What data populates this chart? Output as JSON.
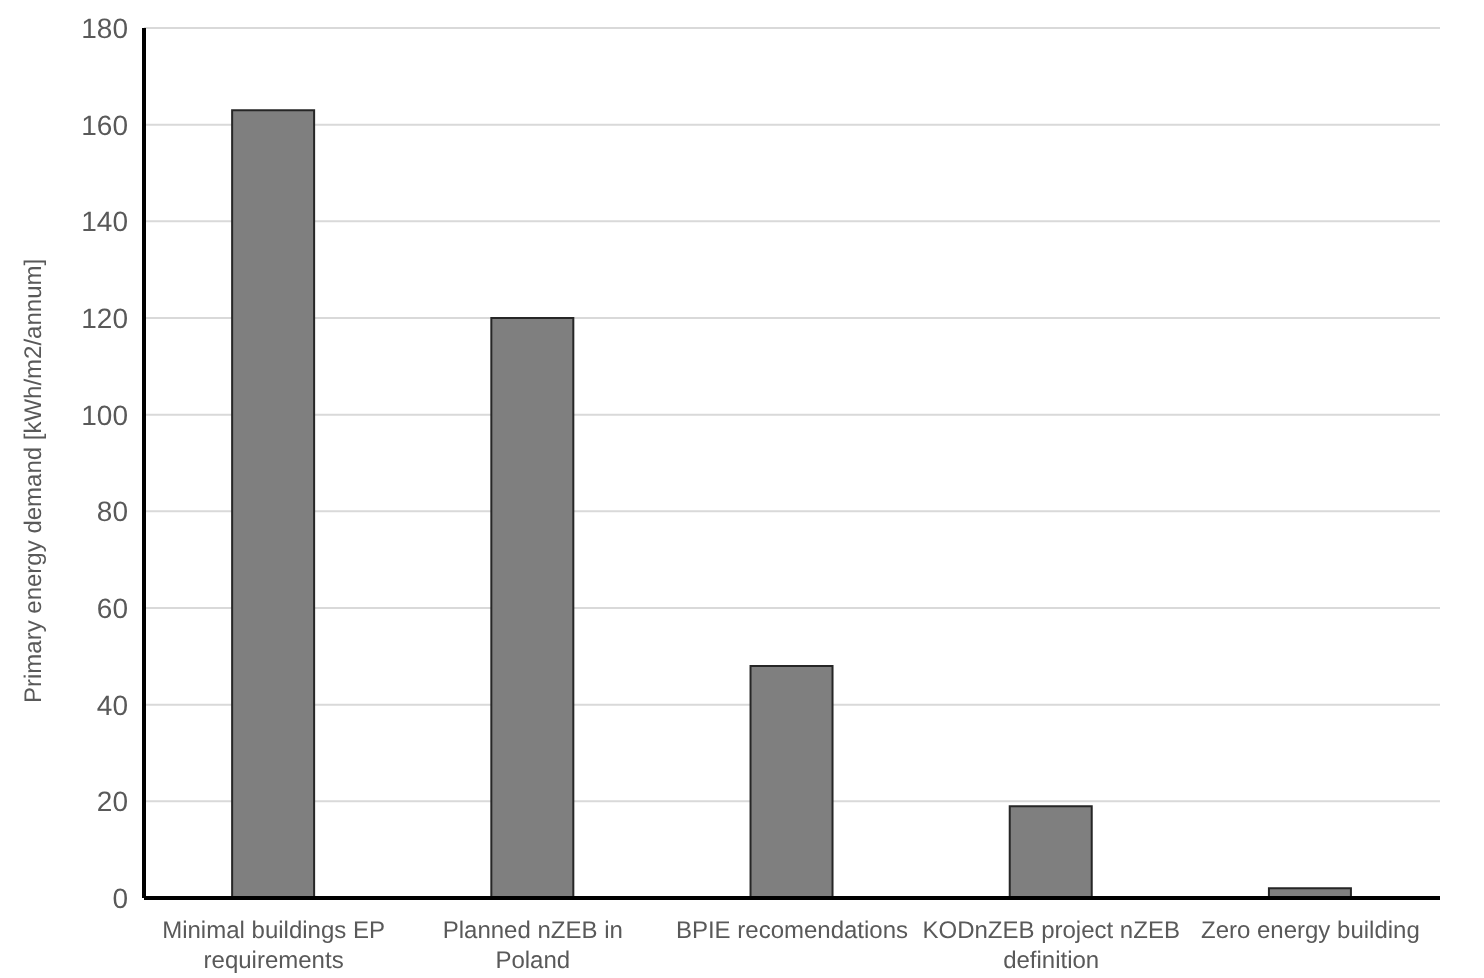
{
  "chart_data": {
    "type": "bar",
    "ylabel": "Primary energy demand [kWh/m2/annum]",
    "categories": [
      "Minimal buildings EP requirements",
      "Planned nZEB in Poland",
      "BPIE recomendations",
      "KODnZEB project nZEB definition",
      "Zero energy building"
    ],
    "values": [
      163,
      120,
      48,
      19,
      2
    ],
    "color": "#7f7f7f",
    "ylim": [
      0,
      180
    ],
    "yticks": [
      0,
      20,
      40,
      60,
      80,
      100,
      120,
      140,
      160,
      180
    ],
    "grid": "y"
  }
}
